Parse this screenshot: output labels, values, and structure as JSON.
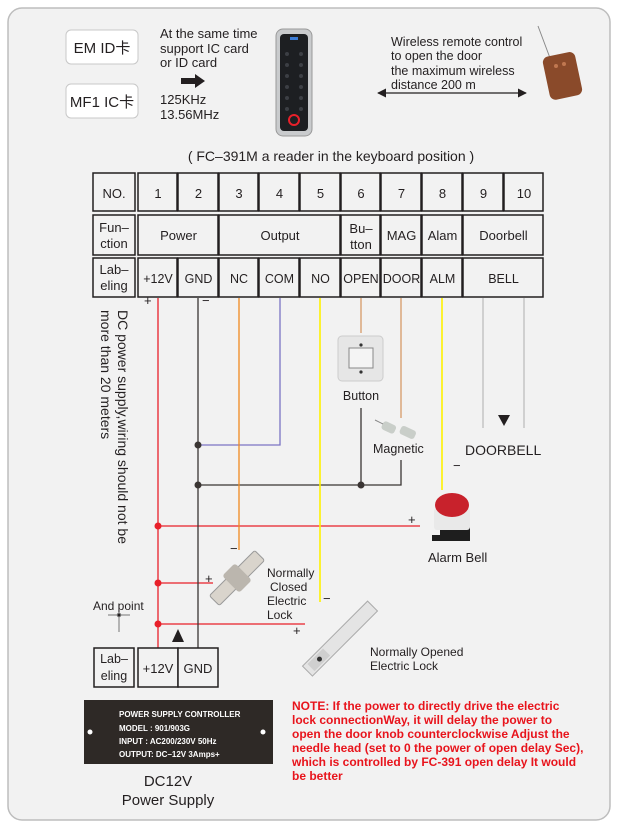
{
  "cards": {
    "em": "EM ID卡",
    "mf1": "MF1 IC卡"
  },
  "support_text": [
    "At the same time",
    "support IC card",
    "or ID card"
  ],
  "frequencies": [
    "125KHz",
    "13.56MHz"
  ],
  "wireless_text": [
    "Wireless remote control",
    "to open the door",
    "the maximum wireless",
    "distance 200 m"
  ],
  "title": "( FC–391M a reader in the keyboard position )",
  "table": {
    "row_headers": {
      "no": "NO.",
      "function": [
        "Fun–",
        "ction"
      ],
      "labeling": [
        "Lab–",
        "eling"
      ]
    },
    "numbers": [
      "1",
      "2",
      "3",
      "4",
      "5",
      "6",
      "7",
      "8",
      "9",
      "10"
    ],
    "number_colors": [
      "#e3202a",
      "#2e2724",
      "#f08a1f",
      "#7e4f9f",
      "#fff200",
      "#d69a68",
      "#d69a68",
      "#fff200",
      "#0a9a4a",
      "#ffffff"
    ],
    "functions": [
      "Power",
      "Output",
      [
        "Bu–",
        "tton"
      ],
      "MAG",
      "Alam",
      "Doorbell"
    ],
    "labels": [
      "+12V",
      "GND",
      "NC",
      "COM",
      "NO",
      "OPEN",
      "DOOR",
      "ALM",
      "BELL"
    ]
  },
  "side_note": [
    "DC power supply,wiring should not be",
    "more than 20 meters"
  ],
  "components": {
    "button": "Button",
    "magnetic": "Magnetic",
    "doorbell": "DOORBELL",
    "alarm_bell": "Alarm Bell",
    "nc_lock": [
      "Normally",
      "Closed",
      "Electric",
      "Lock"
    ],
    "no_lock": [
      "Normally Opened",
      "Electric Lock"
    ],
    "and_point": "And point"
  },
  "polarity": {
    "plus": "+",
    "minus": "−"
  },
  "bottom_labels": {
    "labeling": [
      "Lab–",
      "eling"
    ],
    "v12": "+12V",
    "gnd": "GND"
  },
  "power_plate": [
    "POWER SUPPLY CONTROLLER",
    "MODEL  : 901/903G",
    "INPUT    : AC200/230V   50Hz",
    "OUTPUT: DC–12V  3Amps+"
  ],
  "power_supply_caption": [
    "DC12V",
    "Power Supply"
  ],
  "note": [
    "NOTE: If the power to directly drive the electric",
    "lock connectionWay, it will delay the power to",
    "open the door knob counterclockwise Adjust the",
    "needle head (set to 0 the power of open delay Sec),",
    "which is controlled by FC-391 open delay It would",
    "be better"
  ],
  "wire_colors": {
    "red": "#e8202a",
    "black": "#3a3533",
    "orange": "#f08a1f",
    "purple": "#7b74c4",
    "yellow": "#fff200",
    "tan": "#d69a68",
    "gray": "#bdbdbd"
  }
}
